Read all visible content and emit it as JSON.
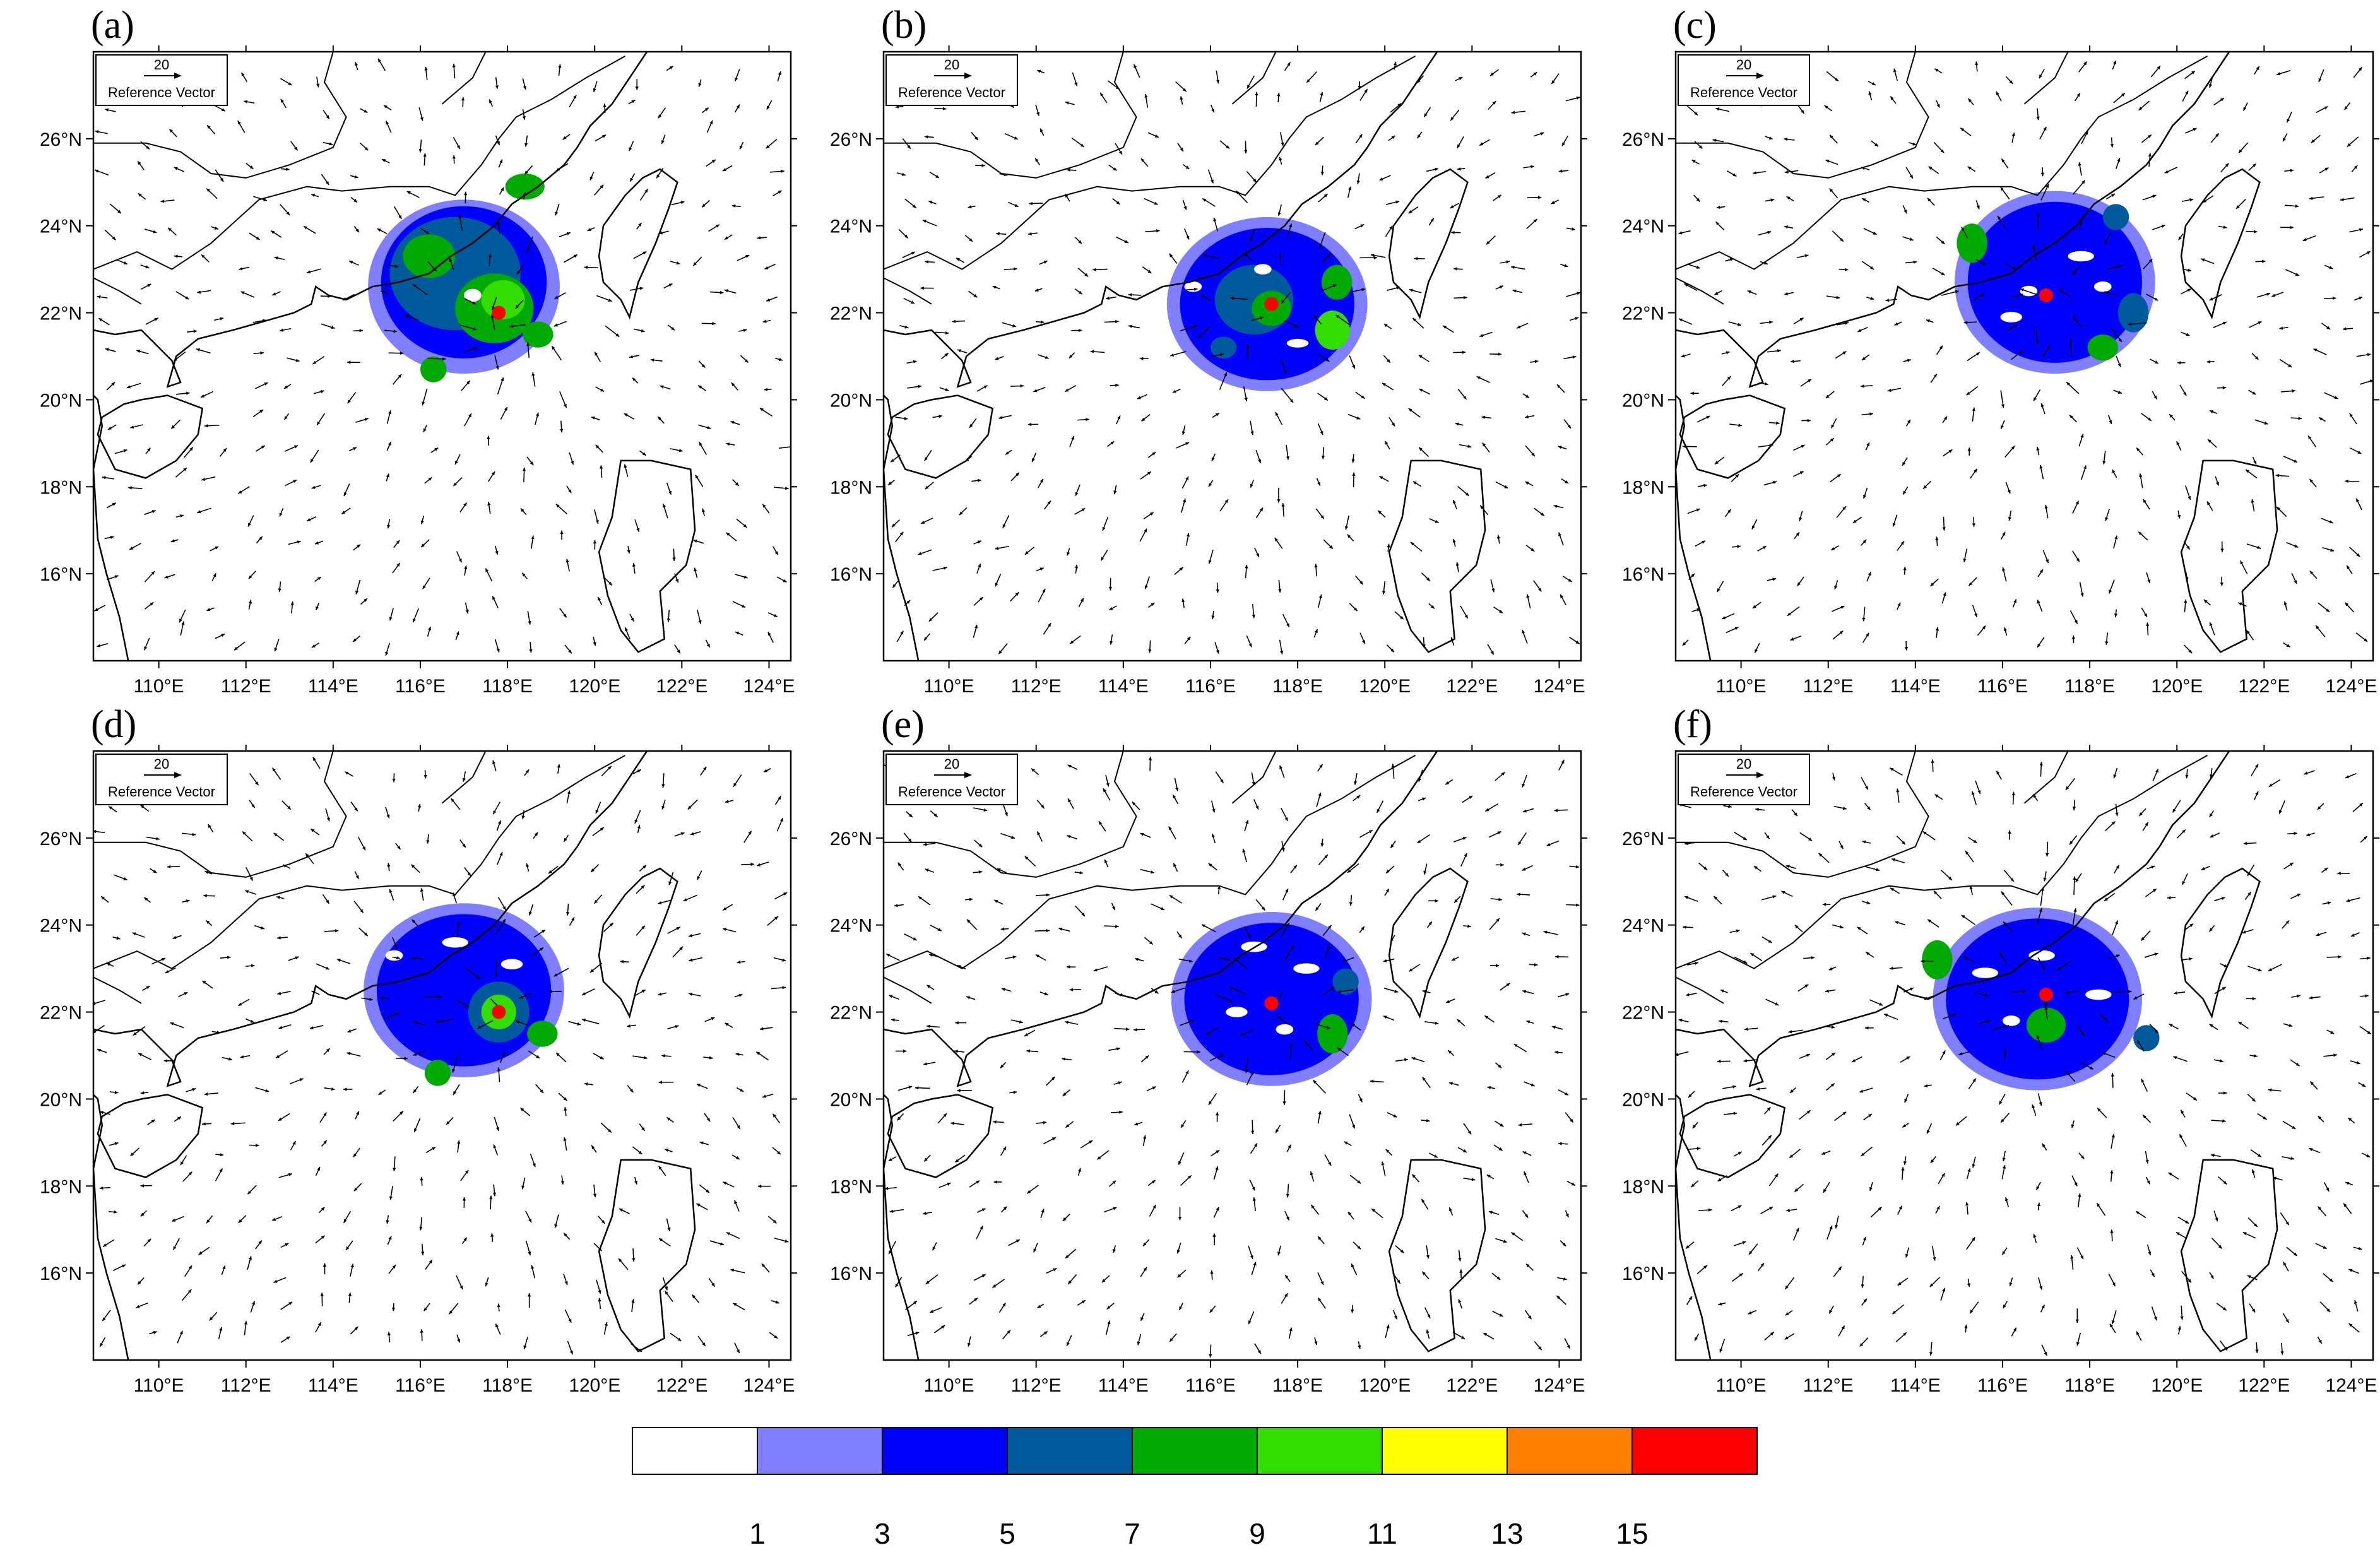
{
  "panels": [
    {
      "label": "(a)",
      "center": [
        117.8,
        22.0
      ],
      "blobs": [
        [
          117.0,
          22.6,
          2.2,
          2.0,
          "#7f7fff"
        ],
        [
          117.0,
          22.7,
          1.9,
          1.75,
          "#0000ff"
        ],
        [
          116.8,
          22.9,
          1.5,
          1.3,
          "#005a9c"
        ],
        [
          117.7,
          22.1,
          0.9,
          0.8,
          "#00aa00"
        ],
        [
          117.9,
          22.3,
          0.5,
          0.45,
          "#33dd00"
        ],
        [
          116.2,
          23.3,
          0.6,
          0.5,
          "#00aa00"
        ],
        [
          118.4,
          24.9,
          0.45,
          0.3,
          "#00aa00"
        ],
        [
          118.7,
          21.5,
          0.35,
          0.3,
          "#00aa00"
        ],
        [
          116.3,
          20.7,
          0.3,
          0.3,
          "#00aa00"
        ],
        [
          117.2,
          22.4,
          0.2,
          0.15,
          "#ffffff"
        ]
      ]
    },
    {
      "label": "(b)",
      "center": [
        117.4,
        22.2
      ],
      "blobs": [
        [
          117.3,
          22.2,
          2.3,
          2.0,
          "#7f7fff"
        ],
        [
          117.3,
          22.2,
          2.0,
          1.75,
          "#0000ff"
        ],
        [
          117.0,
          22.3,
          0.9,
          0.8,
          "#005a9c"
        ],
        [
          117.4,
          22.1,
          0.45,
          0.4,
          "#00aa00"
        ],
        [
          118.8,
          21.6,
          0.4,
          0.45,
          "#33dd00"
        ],
        [
          118.9,
          22.7,
          0.35,
          0.4,
          "#00aa00"
        ],
        [
          116.3,
          21.2,
          0.3,
          0.25,
          "#005a9c"
        ],
        [
          117.2,
          23.0,
          0.2,
          0.12,
          "#ffffff"
        ],
        [
          118.0,
          21.3,
          0.25,
          0.1,
          "#ffffff"
        ],
        [
          115.6,
          22.6,
          0.2,
          0.12,
          "#ffffff"
        ]
      ]
    },
    {
      "label": "(c)",
      "center": [
        117.0,
        22.4
      ],
      "blobs": [
        [
          117.2,
          22.7,
          2.3,
          2.1,
          "#7f7fff"
        ],
        [
          117.2,
          22.7,
          2.0,
          1.85,
          "#0000ff"
        ],
        [
          115.3,
          23.6,
          0.35,
          0.45,
          "#00aa00"
        ],
        [
          118.6,
          24.2,
          0.3,
          0.3,
          "#005a9c"
        ],
        [
          118.3,
          21.2,
          0.35,
          0.3,
          "#00aa00"
        ],
        [
          119.0,
          22.0,
          0.35,
          0.45,
          "#005a9c"
        ],
        [
          116.6,
          22.5,
          0.2,
          0.12,
          "#ffffff"
        ],
        [
          117.8,
          23.3,
          0.3,
          0.12,
          "#ffffff"
        ],
        [
          116.2,
          21.9,
          0.25,
          0.12,
          "#ffffff"
        ],
        [
          118.3,
          22.6,
          0.2,
          0.12,
          "#ffffff"
        ]
      ]
    },
    {
      "label": "(d)",
      "center": [
        117.8,
        22.0
      ],
      "blobs": [
        [
          117.0,
          22.5,
          2.3,
          2.0,
          "#7f7fff"
        ],
        [
          117.0,
          22.5,
          2.0,
          1.75,
          "#0000ff"
        ],
        [
          117.8,
          22.0,
          0.7,
          0.7,
          "#005a9c"
        ],
        [
          117.8,
          22.0,
          0.4,
          0.4,
          "#33dd00"
        ],
        [
          118.8,
          21.5,
          0.35,
          0.3,
          "#00aa00"
        ],
        [
          116.4,
          20.6,
          0.3,
          0.3,
          "#00aa00"
        ],
        [
          116.8,
          23.6,
          0.3,
          0.12,
          "#ffffff"
        ],
        [
          118.1,
          23.1,
          0.25,
          0.12,
          "#ffffff"
        ],
        [
          115.4,
          23.3,
          0.2,
          0.12,
          "#ffffff"
        ]
      ]
    },
    {
      "label": "(e)",
      "center": [
        117.4,
        22.2
      ],
      "blobs": [
        [
          117.4,
          22.3,
          2.3,
          2.0,
          "#7f7fff"
        ],
        [
          117.4,
          22.3,
          2.0,
          1.75,
          "#0000ff"
        ],
        [
          118.8,
          21.5,
          0.35,
          0.45,
          "#00aa00"
        ],
        [
          119.1,
          22.7,
          0.3,
          0.3,
          "#005a9c"
        ],
        [
          117.0,
          23.5,
          0.3,
          0.12,
          "#ffffff"
        ],
        [
          116.6,
          22.0,
          0.25,
          0.12,
          "#ffffff"
        ],
        [
          118.2,
          23.0,
          0.3,
          0.12,
          "#ffffff"
        ],
        [
          117.7,
          21.6,
          0.2,
          0.12,
          "#ffffff"
        ]
      ]
    },
    {
      "label": "(f)",
      "center": [
        117.0,
        22.4
      ],
      "blobs": [
        [
          116.8,
          22.3,
          2.4,
          2.1,
          "#7f7fff"
        ],
        [
          116.8,
          22.3,
          2.1,
          1.85,
          "#0000ff"
        ],
        [
          114.5,
          23.2,
          0.35,
          0.45,
          "#00aa00"
        ],
        [
          117.0,
          21.7,
          0.45,
          0.4,
          "#00aa00"
        ],
        [
          119.3,
          21.4,
          0.3,
          0.3,
          "#005a9c"
        ],
        [
          115.6,
          22.9,
          0.3,
          0.12,
          "#ffffff"
        ],
        [
          116.9,
          23.3,
          0.3,
          0.12,
          "#ffffff"
        ],
        [
          118.2,
          22.4,
          0.3,
          0.12,
          "#ffffff"
        ],
        [
          116.2,
          21.8,
          0.2,
          0.12,
          "#ffffff"
        ]
      ]
    }
  ],
  "map": {
    "lon_range": [
      108.5,
      124.5
    ],
    "lat_range": [
      14.0,
      28.0
    ],
    "lon_ticks": [
      110,
      112,
      114,
      116,
      118,
      120,
      122,
      124
    ],
    "lat_ticks": [
      16,
      18,
      20,
      22,
      24,
      26
    ],
    "lon_tick_labels": [
      "110°E",
      "112°E",
      "114°E",
      "116°E",
      "118°E",
      "120°E",
      "122°E",
      "124°E"
    ],
    "lat_tick_labels": [
      "16°N",
      "18°N",
      "20°N",
      "22°N",
      "24°N",
      "26°N"
    ]
  },
  "reference_vector": {
    "value": "20",
    "label": "Reference Vector"
  },
  "colorbar": {
    "colors": [
      "#ffffff",
      "#7f7fff",
      "#0000ff",
      "#005a9c",
      "#00aa00",
      "#33dd00",
      "#ffff00",
      "#ff8000",
      "#ff0000"
    ],
    "labels": [
      "1",
      "3",
      "5",
      "7",
      "9",
      "11",
      "13",
      "15"
    ]
  },
  "colors": {
    "center_marker": "#ff0000",
    "coastline": "#000000"
  }
}
